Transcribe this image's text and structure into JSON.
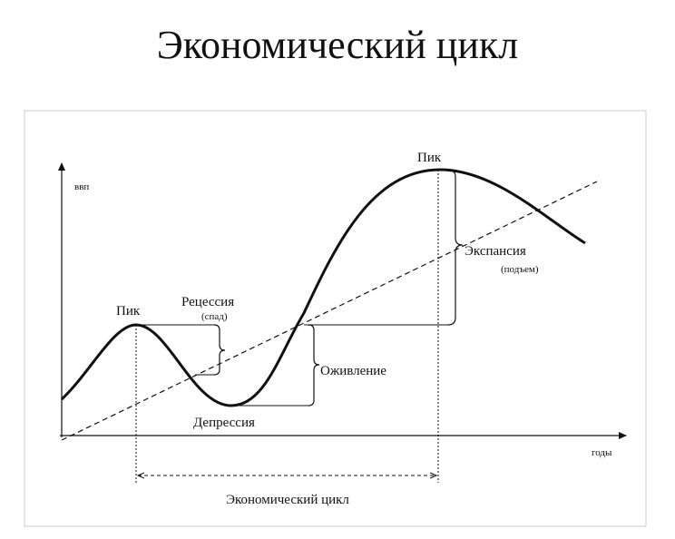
{
  "header": {
    "title": "Экономический цикл"
  },
  "diagram": {
    "y_axis_label": "ввп",
    "x_axis_label": "годы",
    "peak_1": "Пик",
    "peak_2": "Пик",
    "recession": "Рецессия",
    "recession_note": "(спад)",
    "depression": "Депрессия",
    "recovery": "Оживление",
    "expansion": "Экспансия",
    "expansion_note": "(подъем)",
    "cycle": "Экономический цикл"
  }
}
